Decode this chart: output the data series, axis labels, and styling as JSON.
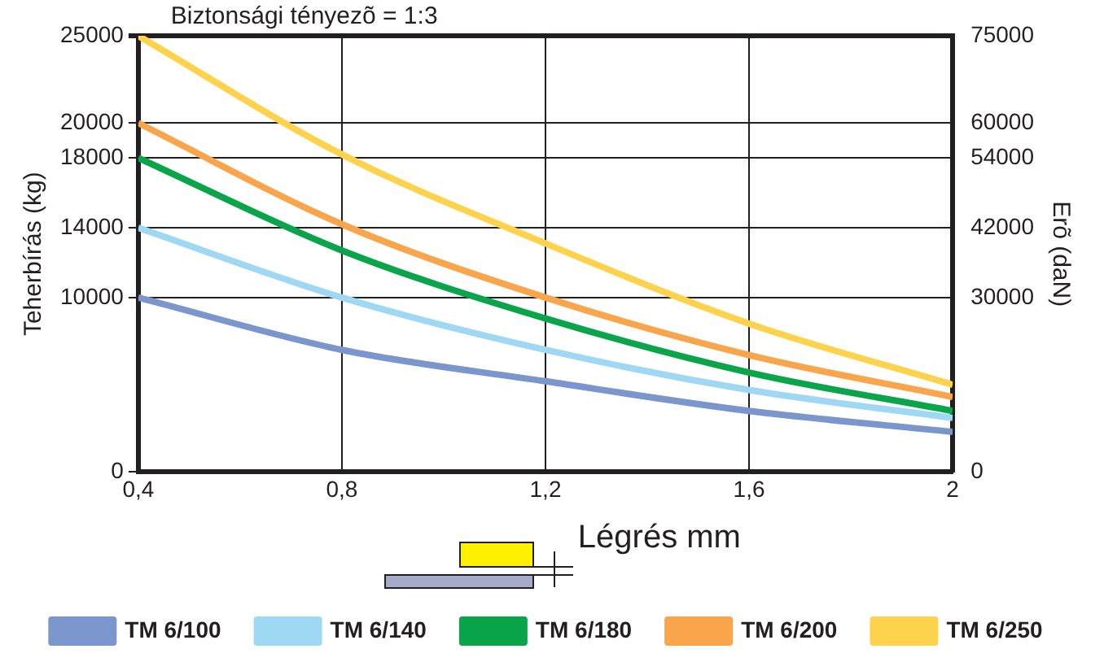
{
  "chart_data": {
    "type": "line",
    "xlabel": "Légrés mm",
    "ylabel": "Teherbírás (kg)",
    "y2label": "Erõ (daN)",
    "annotations": [
      "Biztonsági tényezõ = 1:3"
    ],
    "x": [
      0.4,
      0.8,
      1.2,
      1.6,
      2
    ],
    "series": [
      {
        "name": "TM 6/100",
        "color": "#7b96cc",
        "values": [
          10000,
          7000,
          5200,
          3500,
          2300
        ]
      },
      {
        "name": "TM 6/140",
        "color": "#9fd8f3",
        "values": [
          14000,
          10000,
          7000,
          4700,
          3100
        ]
      },
      {
        "name": "TM 6/180",
        "color": "#0aa54a",
        "values": [
          18000,
          12700,
          8800,
          5700,
          3500
        ]
      },
      {
        "name": "TM 6/200",
        "color": "#f9a54b",
        "values": [
          20000,
          14200,
          10000,
          6700,
          4300
        ]
      },
      {
        "name": "TM 6/250",
        "color": "#fdd34d",
        "values": [
          25000,
          18200,
          13100,
          8500,
          5000
        ]
      }
    ],
    "xlim": [
      0.4,
      2
    ],
    "xticks": [
      {
        "value": 0.4,
        "label": "0,4"
      },
      {
        "value": 0.8,
        "label": "0,8"
      },
      {
        "value": 1.2,
        "label": "1,2"
      },
      {
        "value": 1.6,
        "label": "1,6"
      },
      2
    ],
    "ylim": [
      0,
      25000
    ],
    "yticks": [
      0,
      10000,
      14000,
      18000,
      20000,
      25000
    ],
    "y2lim": [
      0,
      75000
    ],
    "y2ticks": [
      0,
      30000,
      42000,
      54000,
      60000,
      75000
    ],
    "grid": true,
    "legend": "bottom",
    "marker": "none",
    "line_style": "solid"
  }
}
